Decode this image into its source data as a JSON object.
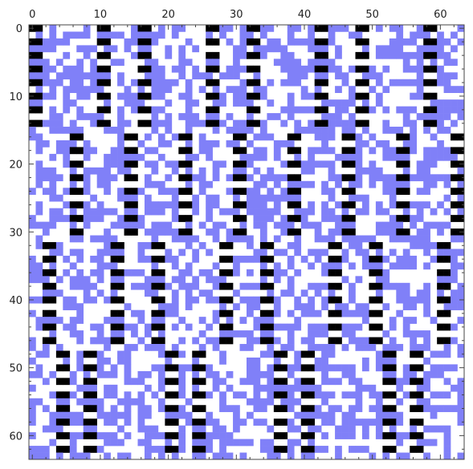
{
  "chart_data": {
    "type": "heatmap",
    "title": "",
    "xlabel": "",
    "ylabel": "",
    "rows": 64,
    "cols": 64,
    "xlim": [
      0,
      64
    ],
    "ylim": [
      0,
      64
    ],
    "x_axis_position": "top",
    "y_axis_direction": "downward",
    "grid": false,
    "legend": "none",
    "x_ticks": [
      0,
      10,
      20,
      30,
      40,
      50,
      60
    ],
    "y_ticks": [
      0,
      10,
      20,
      30,
      40,
      50,
      60
    ],
    "x_tick_labels": [
      "0",
      "10",
      "20",
      "30",
      "40",
      "50",
      "60"
    ],
    "y_tick_labels": [
      "0",
      "10",
      "20",
      "30",
      "40",
      "50",
      "60"
    ],
    "colors": {
      "filled": "#8080f8",
      "marker": "#000000",
      "empty": "#ffffff"
    },
    "marker_pattern": {
      "description": "black cells appear in even rows within vertical bands; 4 row blocks of 16 rows",
      "blocks": [
        {
          "rows": [
            0,
            15
          ],
          "columns": [
            0,
            1,
            10,
            11,
            16,
            17,
            26,
            27,
            32,
            33,
            42,
            43,
            48,
            49,
            58,
            59
          ]
        },
        {
          "rows": [
            16,
            31
          ],
          "columns": [
            6,
            7,
            14,
            15,
            22,
            23,
            30,
            31,
            38,
            39,
            46,
            47,
            54,
            55,
            62,
            63
          ]
        },
        {
          "rows": [
            32,
            47
          ],
          "columns": [
            2,
            3,
            12,
            13,
            18,
            19,
            28,
            29,
            34,
            35,
            44,
            45,
            50,
            51,
            60,
            61
          ]
        },
        {
          "rows": [
            48,
            63
          ],
          "columns": [
            4,
            5,
            8,
            9,
            24,
            25,
            20,
            21,
            36,
            37,
            40,
            41,
            52,
            53,
            56,
            57
          ]
        }
      ]
    },
    "fill_density": 0.5
  }
}
